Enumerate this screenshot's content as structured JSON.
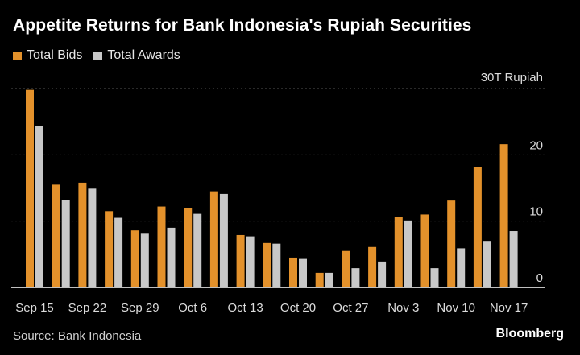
{
  "title": "Appetite Returns for Bank Indonesia's Rupiah Securities",
  "source": "Source: Bank Indonesia",
  "brand": "Bloomberg",
  "colors": {
    "background": "#000000",
    "bids": "#e3912b",
    "awards": "#c8c8c8",
    "grid": "#555555",
    "text": "#dcdcdc"
  },
  "chart_data": {
    "type": "bar",
    "unit": "30T Rupiah",
    "ylim": [
      0,
      30
    ],
    "yticks": [
      {
        "value": 0,
        "label": "0"
      },
      {
        "value": 10,
        "label": "10"
      },
      {
        "value": 20,
        "label": "20"
      }
    ],
    "grid": true,
    "legend": "top-left",
    "categories": [
      "Sep 15",
      "",
      "Sep 22",
      "",
      "Sep 29",
      "",
      "Oct 6",
      "",
      "Oct 13",
      "",
      "Oct 20",
      "",
      "Oct 27",
      "",
      "Nov 3",
      "",
      "Nov 10",
      "",
      "Nov 17"
    ],
    "series": [
      {
        "name": "Total Bids",
        "values": [
          29.8,
          15.5,
          15.8,
          11.5,
          8.6,
          12.2,
          12.0,
          14.5,
          7.9,
          6.7,
          4.5,
          2.2,
          5.5,
          6.1,
          10.6,
          11.0,
          13.1,
          18.2,
          21.6
        ]
      },
      {
        "name": "Total Awards",
        "values": [
          24.4,
          13.2,
          14.9,
          10.5,
          8.1,
          9.0,
          11.1,
          14.1,
          7.7,
          6.6,
          4.3,
          2.2,
          2.9,
          3.9,
          10.1,
          2.9,
          5.9,
          6.9,
          8.5
        ]
      }
    ]
  }
}
